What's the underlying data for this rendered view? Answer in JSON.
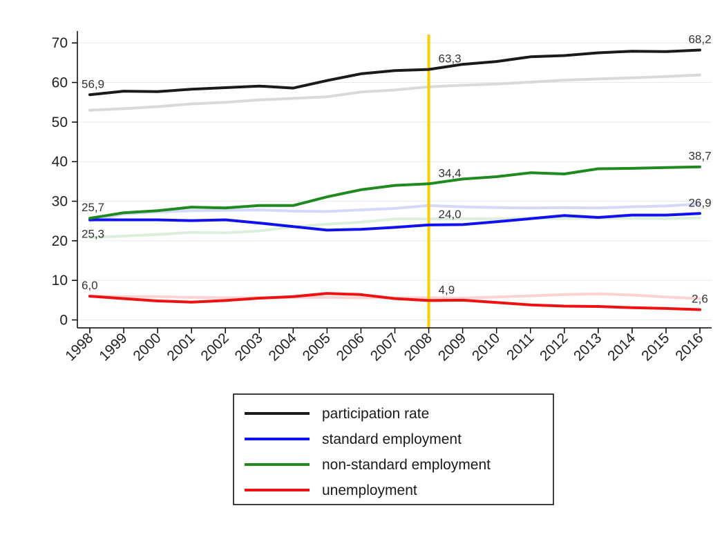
{
  "chart_data": {
    "type": "line",
    "title": "",
    "xlabel": "",
    "ylabel": "",
    "x": [
      1998,
      1999,
      2000,
      2001,
      2002,
      2003,
      2004,
      2005,
      2006,
      2007,
      2008,
      2009,
      2010,
      2011,
      2012,
      2013,
      2014,
      2015,
      2016
    ],
    "x_tick_labels": [
      "1998",
      "1999",
      "2000",
      "2001",
      "2002",
      "2003",
      "2004",
      "2005",
      "2006",
      "2007",
      "2008",
      "2009",
      "2010",
      "2011",
      "2012",
      "2013",
      "2014",
      "2015",
      "2016"
    ],
    "ylim": [
      -2,
      73
    ],
    "y_ticks": [
      0,
      10,
      20,
      30,
      40,
      50,
      60,
      70
    ],
    "y_tick_labels": [
      "0",
      "10",
      "20",
      "30",
      "40",
      "50",
      "60",
      "70"
    ],
    "grid": "horizontal",
    "legend_position": "bottom-center",
    "vertical_marker": {
      "x": 2008,
      "color": "#FFCC00"
    },
    "series": [
      {
        "name": "participation rate",
        "color": "#1a1a1a",
        "values": [
          56.9,
          57.8,
          57.7,
          58.3,
          58.7,
          59.1,
          58.6,
          60.5,
          62.2,
          63.0,
          63.3,
          64.6,
          65.3,
          66.5,
          66.8,
          67.5,
          67.9,
          67.8,
          68.2
        ]
      },
      {
        "name": "standard employment",
        "color": "#1111ee",
        "values": [
          25.3,
          25.3,
          25.3,
          25.1,
          25.3,
          24.5,
          23.6,
          22.7,
          22.9,
          23.4,
          24.0,
          24.1,
          24.8,
          25.6,
          26.4,
          25.9,
          26.5,
          26.5,
          26.9
        ]
      },
      {
        "name": "non-standard employment",
        "color": "#1f8a1f",
        "values": [
          25.7,
          27.1,
          27.6,
          28.5,
          28.3,
          28.9,
          28.9,
          31.1,
          32.9,
          34.0,
          34.4,
          35.6,
          36.2,
          37.2,
          36.9,
          38.2,
          38.3,
          38.5,
          38.7
        ]
      },
      {
        "name": "unemployment",
        "color": "#ee1111",
        "values": [
          6.0,
          5.4,
          4.8,
          4.5,
          4.9,
          5.5,
          5.9,
          6.7,
          6.4,
          5.4,
          4.9,
          5.0,
          4.4,
          3.8,
          3.5,
          3.4,
          3.1,
          2.9,
          2.6
        ]
      }
    ],
    "background_series": [
      {
        "color": "#d9d9d9",
        "values": [
          53.0,
          53.4,
          53.9,
          54.6,
          55.0,
          55.6,
          56.0,
          56.4,
          57.6,
          58.1,
          58.9,
          59.3,
          59.6,
          60.1,
          60.6,
          60.9,
          61.2,
          61.5,
          61.9
        ]
      },
      {
        "color": "#d6d8fb",
        "values": [
          25.0,
          26.8,
          27.3,
          27.6,
          27.7,
          27.8,
          27.5,
          27.4,
          27.8,
          28.2,
          28.9,
          28.6,
          28.4,
          28.3,
          28.4,
          28.3,
          28.6,
          28.8,
          29.3
        ]
      },
      {
        "color": "#dcefdc",
        "values": [
          20.8,
          21.2,
          21.6,
          22.1,
          22.0,
          22.5,
          23.5,
          24.2,
          24.7,
          25.5,
          25.5,
          25.6,
          25.5,
          25.7,
          25.6,
          25.7,
          25.7,
          25.6,
          25.8
        ]
      },
      {
        "color": "#fbd3d3",
        "values": [
          6.0,
          5.9,
          5.9,
          5.7,
          5.6,
          5.6,
          5.7,
          5.7,
          5.6,
          5.6,
          5.6,
          5.5,
          5.8,
          6.1,
          6.4,
          6.6,
          6.3,
          5.8,
          5.4
        ]
      }
    ],
    "annotations": [
      {
        "text": "56,9",
        "x": 1998,
        "y": 56.9,
        "anchor": "start",
        "offset": "above"
      },
      {
        "text": "63,3",
        "x": 2008,
        "y": 63.3,
        "anchor": "start",
        "offset": "above"
      },
      {
        "text": "68,2",
        "x": 2016,
        "y": 68.2,
        "anchor": "middle",
        "offset": "above"
      },
      {
        "text": "25,7",
        "x": 1998,
        "y": 25.7,
        "anchor": "start",
        "offset": "above"
      },
      {
        "text": "25,3",
        "x": 1998,
        "y": 25.3,
        "anchor": "start",
        "offset": "below"
      },
      {
        "text": "34,4",
        "x": 2008,
        "y": 34.4,
        "anchor": "start",
        "offset": "above"
      },
      {
        "text": "24,0",
        "x": 2008,
        "y": 24.0,
        "anchor": "start",
        "offset": "above"
      },
      {
        "text": "38,7",
        "x": 2016,
        "y": 38.7,
        "anchor": "middle",
        "offset": "above"
      },
      {
        "text": "26,9",
        "x": 2016,
        "y": 26.9,
        "anchor": "middle",
        "offset": "above"
      },
      {
        "text": "6,0",
        "x": 1998,
        "y": 6.0,
        "anchor": "start",
        "offset": "above"
      },
      {
        "text": "4,9",
        "x": 2008,
        "y": 4.9,
        "anchor": "start",
        "offset": "above"
      },
      {
        "text": "2,6",
        "x": 2016,
        "y": 2.6,
        "anchor": "middle",
        "offset": "above"
      }
    ]
  }
}
